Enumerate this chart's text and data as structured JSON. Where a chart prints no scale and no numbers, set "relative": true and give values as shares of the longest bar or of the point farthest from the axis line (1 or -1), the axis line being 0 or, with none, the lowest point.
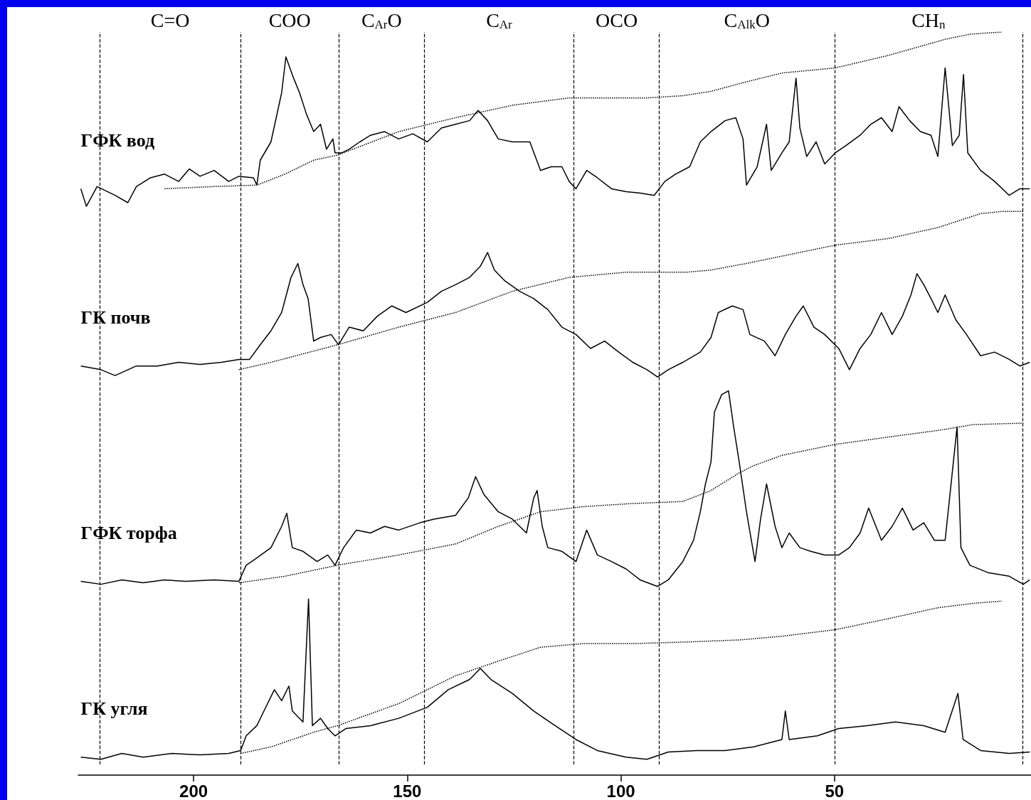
{
  "chart_data": {
    "type": "line",
    "relative": true,
    "xlim": [
      227,
      4
    ],
    "xticks": [
      200,
      150,
      100,
      50
    ],
    "grid": false,
    "legend": false,
    "marker": "none",
    "line_style": "solid",
    "ref_lines": [
      {
        "axis": "x",
        "value": 222,
        "line_style": "dashed"
      },
      {
        "axis": "x",
        "value": 189,
        "line_style": "dashed"
      },
      {
        "axis": "x",
        "value": 166,
        "line_style": "dashed"
      },
      {
        "axis": "x",
        "value": 146,
        "line_style": "dashed"
      },
      {
        "axis": "x",
        "value": 111,
        "line_style": "dashed"
      },
      {
        "axis": "x",
        "value": 91,
        "line_style": "dashed"
      },
      {
        "axis": "x",
        "value": 50,
        "line_style": "dashed"
      },
      {
        "axis": "x",
        "value": 6,
        "line_style": "dashed"
      }
    ],
    "annotations": [
      "C=O",
      "COO",
      "C$_{Ar}$O",
      "C$_{Ar}$",
      "OCO",
      "C$_{Alk}$O",
      "CH$_{n}$"
    ],
    "series": [
      {
        "name": "ГФК вод",
        "color": "#000000",
        "x": [
          226.4,
          225.1,
          222.6,
          218.4,
          215.4,
          213.4,
          210.1,
          206.8,
          203.5,
          201.0,
          198.5,
          195.2,
          191.8,
          189.4,
          186.0,
          185.2,
          184.4,
          181.9,
          179.4,
          178.4,
          176.6,
          175.2,
          173.6,
          171.9,
          170.3,
          168.9,
          167.4,
          166.9,
          165.3,
          163.6,
          161.1,
          158.6,
          155.3,
          152.0,
          148.7,
          145.3,
          142.0,
          138.7,
          135.4,
          133.4,
          131.2,
          128.7,
          125.4,
          121.3,
          118.8,
          116.3,
          113.8,
          112.1,
          110.5,
          108.0,
          105.5,
          102.2,
          98.8,
          95.5,
          92.2,
          89.7,
          87.2,
          83.9,
          81.4,
          78.9,
          75.6,
          73.1,
          71.4,
          70.6,
          68.1,
          65.9,
          64.8,
          62.3,
          60.6,
          59.0,
          58.1,
          56.5,
          54.3,
          52.3,
          49.8,
          47.3,
          44.0,
          41.5,
          39.0,
          36.5,
          34.9,
          32.4,
          29.9,
          27.4,
          25.8,
          24.1,
          22.4,
          20.8,
          19.8,
          18.8,
          15.8,
          12.5,
          9.1,
          6.6,
          4.3
        ],
        "values": [
          0.786,
          0.762,
          0.789,
          0.777,
          0.767,
          0.789,
          0.801,
          0.806,
          0.796,
          0.813,
          0.803,
          0.811,
          0.796,
          0.803,
          0.801,
          0.791,
          0.825,
          0.85,
          0.917,
          0.966,
          0.937,
          0.917,
          0.888,
          0.864,
          0.874,
          0.84,
          0.854,
          0.835,
          0.835,
          0.84,
          0.85,
          0.859,
          0.864,
          0.854,
          0.861,
          0.85,
          0.869,
          0.874,
          0.879,
          0.893,
          0.879,
          0.854,
          0.85,
          0.85,
          0.811,
          0.816,
          0.816,
          0.796,
          0.786,
          0.811,
          0.801,
          0.786,
          0.782,
          0.78,
          0.777,
          0.796,
          0.806,
          0.816,
          0.85,
          0.864,
          0.879,
          0.883,
          0.854,
          0.791,
          0.816,
          0.874,
          0.811,
          0.835,
          0.85,
          0.937,
          0.869,
          0.83,
          0.85,
          0.82,
          0.835,
          0.845,
          0.859,
          0.874,
          0.883,
          0.864,
          0.898,
          0.879,
          0.864,
          0.859,
          0.83,
          0.951,
          0.845,
          0.859,
          0.942,
          0.835,
          0.811,
          0.796,
          0.777,
          0.786,
          0.786
        ]
      },
      {
        "color": "#000000",
        "line_style": "dotted",
        "x": [
          206.8,
          195.2,
          185.2,
          178.6,
          171.9,
          166.3,
          152.0,
          138.7,
          125.4,
          112.1,
          93.9,
          85.5,
          78.9,
          70.6,
          62.3,
          49.8,
          37.4,
          24.1,
          18.3,
          10.8
        ],
        "values": [
          0.786,
          0.789,
          0.791,
          0.806,
          0.825,
          0.832,
          0.864,
          0.883,
          0.9,
          0.91,
          0.91,
          0.913,
          0.919,
          0.932,
          0.944,
          0.951,
          0.968,
          0.99,
          0.997,
          1.0
        ]
      },
      {
        "name": "ГК почв",
        "color": "#000000",
        "x": [
          226.4,
          221.7,
          218.4,
          213.4,
          208.5,
          203.5,
          198.5,
          193.5,
          189.4,
          186.9,
          184.4,
          181.9,
          179.4,
          177.2,
          175.6,
          174.4,
          173.2,
          171.9,
          170.3,
          167.8,
          166.1,
          163.6,
          160.3,
          157.0,
          153.6,
          150.3,
          145.3,
          142.0,
          138.7,
          135.4,
          132.9,
          131.2,
          129.6,
          127.1,
          123.7,
          120.4,
          117.1,
          113.8,
          110.5,
          107.1,
          103.8,
          100.5,
          97.2,
          93.9,
          91.4,
          88.9,
          85.5,
          81.4,
          78.9,
          77.2,
          73.9,
          71.4,
          69.8,
          66.4,
          63.9,
          61.5,
          59.0,
          57.3,
          54.8,
          52.3,
          49.0,
          46.5,
          44.0,
          41.5,
          39.0,
          36.5,
          34.1,
          32.1,
          30.7,
          29.1,
          27.4,
          25.8,
          24.1,
          21.6,
          19.1,
          15.8,
          12.5,
          9.1,
          6.6,
          4.3
        ],
        "values": [
          0.544,
          0.539,
          0.531,
          0.544,
          0.544,
          0.549,
          0.546,
          0.549,
          0.553,
          0.553,
          0.573,
          0.592,
          0.617,
          0.665,
          0.684,
          0.655,
          0.636,
          0.578,
          0.583,
          0.587,
          0.573,
          0.597,
          0.592,
          0.612,
          0.626,
          0.617,
          0.631,
          0.646,
          0.655,
          0.665,
          0.68,
          0.699,
          0.675,
          0.66,
          0.646,
          0.636,
          0.621,
          0.597,
          0.587,
          0.568,
          0.578,
          0.563,
          0.549,
          0.539,
          0.529,
          0.539,
          0.549,
          0.563,
          0.583,
          0.617,
          0.626,
          0.621,
          0.587,
          0.578,
          0.558,
          0.587,
          0.612,
          0.626,
          0.597,
          0.587,
          0.568,
          0.539,
          0.568,
          0.587,
          0.617,
          0.587,
          0.612,
          0.641,
          0.67,
          0.655,
          0.636,
          0.617,
          0.641,
          0.607,
          0.587,
          0.558,
          0.563,
          0.553,
          0.544,
          0.549
        ]
      },
      {
        "color": "#000000",
        "line_style": "dotted",
        "x": [
          189.4,
          181.9,
          166.3,
          152.0,
          138.7,
          125.4,
          112.1,
          98.8,
          84.7,
          78.9,
          70.6,
          62.3,
          49.8,
          37.4,
          25.8,
          15.8,
          10.8,
          5.8
        ],
        "values": [
          0.539,
          0.549,
          0.573,
          0.597,
          0.617,
          0.646,
          0.665,
          0.672,
          0.672,
          0.675,
          0.684,
          0.694,
          0.709,
          0.718,
          0.733,
          0.752,
          0.755,
          0.755
        ]
      },
      {
        "name": "ГФК торфа",
        "color": "#000000",
        "x": [
          226.4,
          221.7,
          216.8,
          211.8,
          206.8,
          201.8,
          195.2,
          189.4,
          187.7,
          185.2,
          181.9,
          179.4,
          178.2,
          176.9,
          174.4,
          171.1,
          168.6,
          166.9,
          164.9,
          161.9,
          158.6,
          155.3,
          152.0,
          147.0,
          143.7,
          138.7,
          135.7,
          134.0,
          132.1,
          128.7,
          125.4,
          122.1,
          120.4,
          119.6,
          118.4,
          117.1,
          113.8,
          110.5,
          108.0,
          105.5,
          102.2,
          98.8,
          95.5,
          91.4,
          88.9,
          85.5,
          83.0,
          81.4,
          80.2,
          78.9,
          78.1,
          76.4,
          74.8,
          73.6,
          72.3,
          70.6,
          68.6,
          67.3,
          65.9,
          63.9,
          62.3,
          60.6,
          58.1,
          55.6,
          52.3,
          49.0,
          46.5,
          44.0,
          42.0,
          39.0,
          36.5,
          34.1,
          31.6,
          29.1,
          26.6,
          24.1,
          21.3,
          20.4,
          18.3,
          14.1,
          9.1,
          5.8,
          4.3
        ],
        "values": [
          0.25,
          0.246,
          0.252,
          0.248,
          0.252,
          0.25,
          0.252,
          0.25,
          0.272,
          0.282,
          0.296,
          0.325,
          0.343,
          0.296,
          0.291,
          0.277,
          0.286,
          0.272,
          0.296,
          0.32,
          0.316,
          0.325,
          0.32,
          0.33,
          0.335,
          0.34,
          0.364,
          0.393,
          0.369,
          0.345,
          0.335,
          0.316,
          0.364,
          0.374,
          0.325,
          0.296,
          0.291,
          0.277,
          0.32,
          0.286,
          0.277,
          0.267,
          0.252,
          0.243,
          0.252,
          0.277,
          0.306,
          0.345,
          0.383,
          0.413,
          0.481,
          0.505,
          0.51,
          0.461,
          0.413,
          0.345,
          0.277,
          0.335,
          0.383,
          0.325,
          0.296,
          0.316,
          0.296,
          0.291,
          0.286,
          0.286,
          0.296,
          0.316,
          0.35,
          0.306,
          0.325,
          0.35,
          0.32,
          0.33,
          0.306,
          0.306,
          0.461,
          0.296,
          0.272,
          0.262,
          0.257,
          0.246,
          0.252
        ]
      },
      {
        "color": "#000000",
        "line_style": "dotted",
        "x": [
          189.4,
          178.6,
          166.3,
          152.0,
          138.7,
          128.7,
          118.8,
          108.8,
          98.0,
          85.5,
          78.9,
          72.3,
          68.9,
          62.3,
          49.8,
          37.4,
          25.8,
          17.4,
          5.8
        ],
        "values": [
          0.248,
          0.257,
          0.272,
          0.286,
          0.301,
          0.325,
          0.345,
          0.352,
          0.356,
          0.359,
          0.374,
          0.398,
          0.408,
          0.422,
          0.437,
          0.447,
          0.456,
          0.464,
          0.466
        ]
      },
      {
        "name": "ГК угля",
        "color": "#000000",
        "x": [
          226.4,
          221.7,
          216.8,
          211.8,
          205.1,
          198.5,
          191.8,
          189.0,
          187.7,
          185.2,
          182.7,
          181.1,
          179.4,
          177.7,
          176.9,
          174.4,
          173.1,
          172.2,
          170.3,
          168.6,
          166.9,
          164.4,
          158.6,
          152.0,
          145.3,
          140.4,
          135.4,
          132.9,
          130.4,
          125.4,
          120.4,
          115.4,
          110.5,
          105.5,
          98.8,
          93.9,
          88.9,
          82.2,
          75.6,
          68.9,
          62.3,
          61.5,
          60.6,
          54.0,
          49.0,
          42.4,
          35.7,
          29.1,
          24.1,
          21.1,
          19.9,
          15.8,
          9.1,
          4.3
        ],
        "values": [
          0.01,
          0.007,
          0.015,
          0.01,
          0.015,
          0.013,
          0.015,
          0.019,
          0.039,
          0.053,
          0.083,
          0.102,
          0.087,
          0.107,
          0.073,
          0.058,
          0.226,
          0.053,
          0.063,
          0.049,
          0.039,
          0.049,
          0.053,
          0.063,
          0.078,
          0.102,
          0.116,
          0.131,
          0.116,
          0.097,
          0.073,
          0.053,
          0.034,
          0.019,
          0.01,
          0.007,
          0.017,
          0.019,
          0.019,
          0.024,
          0.034,
          0.073,
          0.034,
          0.039,
          0.049,
          0.053,
          0.058,
          0.053,
          0.044,
          0.097,
          0.034,
          0.019,
          0.015,
          0.017
        ]
      },
      {
        "color": "#000000",
        "line_style": "dotted",
        "x": [
          189.0,
          181.9,
          171.9,
          166.3,
          152.0,
          138.7,
          128.7,
          118.8,
          108.8,
          97.2,
          85.5,
          72.3,
          62.3,
          49.8,
          37.4,
          25.8,
          17.4,
          10.8
        ],
        "values": [
          0.015,
          0.024,
          0.044,
          0.053,
          0.083,
          0.121,
          0.141,
          0.16,
          0.165,
          0.165,
          0.167,
          0.17,
          0.175,
          0.184,
          0.199,
          0.214,
          0.22,
          0.223
        ]
      }
    ]
  }
}
